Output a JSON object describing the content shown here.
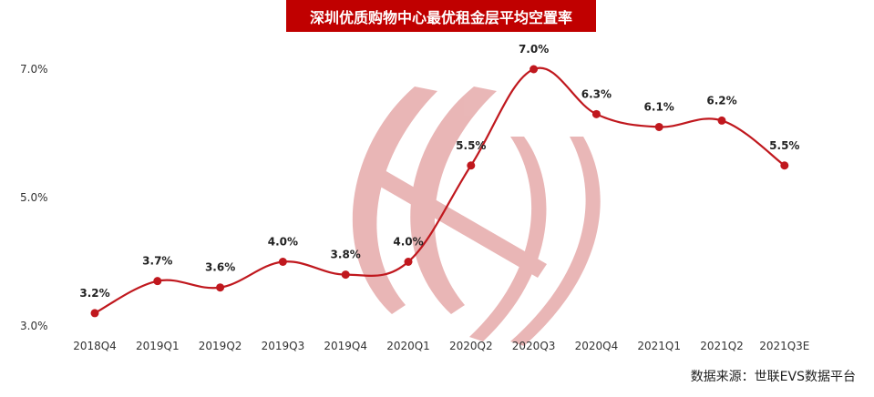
{
  "title": "深圳优质购物中心最优租金层平均空置率",
  "source": "数据来源：世联EVS数据平台",
  "colors": {
    "title_bg": "#c00000",
    "line": "#c0181e",
    "watermark": "#e8b3b3"
  },
  "chart_data": {
    "type": "line",
    "title": "深圳优质购物中心最优租金层平均空置率",
    "xlabel": "",
    "ylabel": "",
    "categories": [
      "2018Q4",
      "2019Q1",
      "2019Q2",
      "2019Q3",
      "2019Q4",
      "2020Q1",
      "2020Q2",
      "2020Q3",
      "2020Q4",
      "2021Q1",
      "2021Q2",
      "2021Q3E"
    ],
    "values": [
      3.2,
      3.7,
      3.6,
      4.0,
      3.8,
      4.0,
      5.5,
      7.0,
      6.3,
      6.1,
      6.2,
      5.5
    ],
    "data_labels": [
      "3.2%",
      "3.7%",
      "3.6%",
      "4.0%",
      "3.8%",
      "4.0%",
      "5.5%",
      "7.0%",
      "6.3%",
      "6.1%",
      "6.2%",
      "5.5%"
    ],
    "yticks": [
      3.0,
      5.0,
      7.0
    ],
    "ytick_labels": [
      "3.0%",
      "5.0%",
      "7.0%"
    ],
    "ylim": [
      3.0,
      7.0
    ],
    "grid": false,
    "legend": "none"
  }
}
